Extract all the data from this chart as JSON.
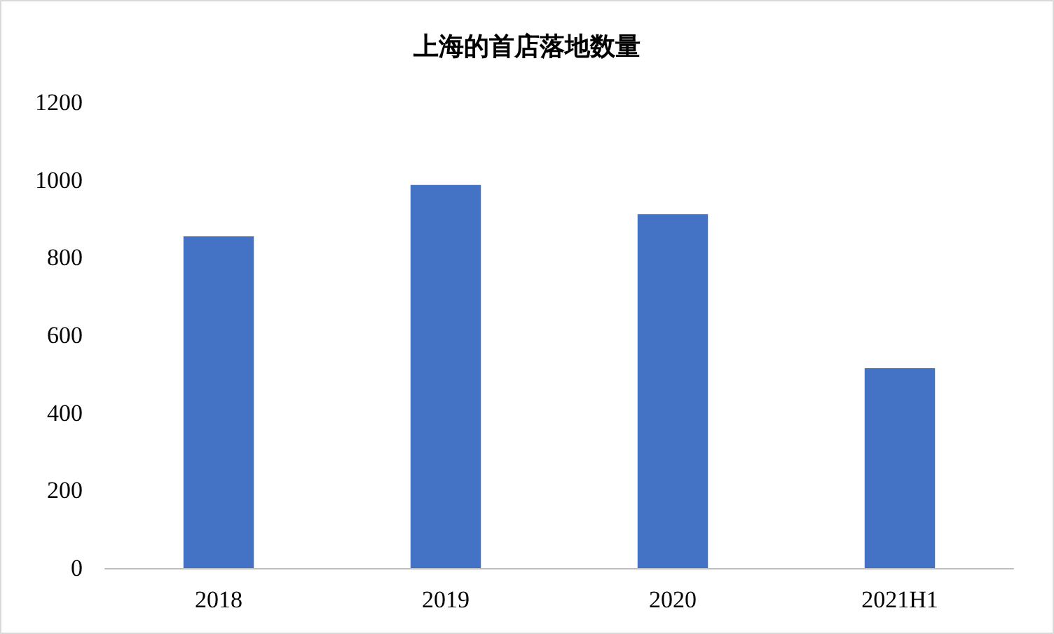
{
  "chart_data": {
    "type": "bar",
    "title": "上海的首店落地数量",
    "categories": [
      "2018",
      "2019",
      "2020",
      "2021H1"
    ],
    "values": [
      855,
      987,
      912,
      515
    ],
    "color": "#4472c4",
    "ylim": [
      0,
      1200
    ],
    "yticks": [
      0,
      200,
      400,
      600,
      800,
      1000,
      1200
    ],
    "grid": false
  }
}
